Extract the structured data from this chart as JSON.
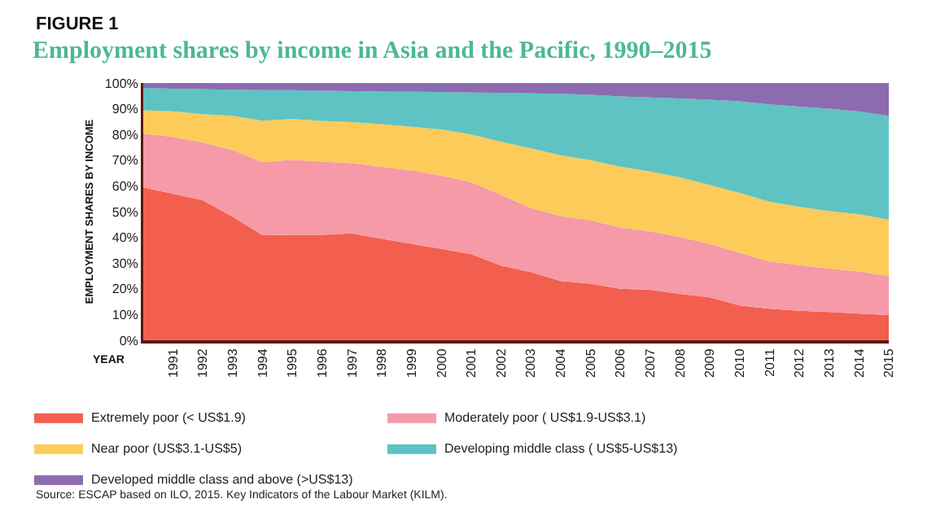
{
  "chart_data": {
    "type": "area",
    "stacked": true,
    "title": "Employment shares by income in Asia and the Pacific, 1990–2015",
    "ylabel": "EMPLOYMENT SHARES BY INCOME",
    "xlabel": "YEAR",
    "x": [
      1990,
      1991,
      1992,
      1993,
      1994,
      1995,
      1996,
      1997,
      1998,
      1999,
      2000,
      2001,
      2002,
      2003,
      2004,
      2005,
      2006,
      2007,
      2008,
      2009,
      2010,
      2011,
      2012,
      2013,
      2014,
      2015
    ],
    "series": [
      {
        "name": "Extremely poor (< US$1.9)",
        "color": "#f25f4f",
        "values": [
          59.4,
          57,
          54.4,
          48,
          40.8,
          41,
          41,
          41.5,
          39.5,
          37.5,
          35.5,
          33.5,
          29,
          26.5,
          23,
          22,
          20,
          19.6,
          18,
          16.7,
          13.5,
          12.3,
          11.5,
          11,
          10.4,
          9.8
        ]
      },
      {
        "name": "Moderately poor ( US$1.9-US$3.1)",
        "color": "#f59aa6",
        "values": [
          21,
          22,
          22.5,
          26,
          28.4,
          29.2,
          28.5,
          27.3,
          28,
          28.5,
          28.5,
          28,
          27.5,
          25,
          25.3,
          24.7,
          23.8,
          22.7,
          22.2,
          20.8,
          20.5,
          18.3,
          17.7,
          16.9,
          16.3,
          15.2
        ]
      },
      {
        "name": "Near poor (US$3.1-US$5)",
        "color": "#fccb5a",
        "values": [
          9,
          10,
          11,
          13.3,
          16.2,
          15.8,
          15.8,
          16,
          16.5,
          17,
          18,
          18.5,
          20.6,
          23.1,
          23.6,
          23.3,
          23.7,
          23.3,
          23.1,
          22.9,
          23.3,
          23.3,
          22.7,
          22.3,
          22.3,
          21.9
        ]
      },
      {
        "name": "Developing middle class ( US$5-US$13)",
        "color": "#5ec3c2",
        "values": [
          8.7,
          8.8,
          9.7,
          10.1,
          11.8,
          11.2,
          11.7,
          12,
          12.7,
          13.6,
          14.5,
          16.3,
          19.1,
          21.4,
          23.9,
          25.4,
          27.3,
          28.8,
          30.7,
          33.1,
          35.6,
          37.8,
          38.9,
          39.8,
          39.9,
          40.4
        ]
      },
      {
        "name": "Developed middle class and above (>US$13)",
        "color": "#8c6bb0",
        "values": [
          1.9,
          2.2,
          2.4,
          2.6,
          2.8,
          2.8,
          3,
          3.2,
          3.3,
          3.4,
          3.5,
          3.7,
          3.8,
          4,
          4.2,
          4.6,
          5.2,
          5.6,
          6,
          6.5,
          7.1,
          8.3,
          9.2,
          10,
          11.1,
          12.7
        ]
      }
    ],
    "xlim": [
      1990,
      2015
    ],
    "xticks": [
      1991,
      1992,
      1993,
      1994,
      1995,
      1996,
      1997,
      1998,
      1999,
      2000,
      2001,
      2002,
      2003,
      2004,
      2005,
      2006,
      2007,
      2008,
      2009,
      2010,
      2011,
      2012,
      2013,
      2014,
      2015
    ],
    "ylim": [
      0,
      100
    ],
    "yticks": [
      {
        "value": 0,
        "label": "0%"
      },
      {
        "value": 10,
        "label": "10%"
      },
      {
        "value": 20,
        "label": "20%"
      },
      {
        "value": 30,
        "label": "30%"
      },
      {
        "value": 40,
        "label": "40%"
      },
      {
        "value": 50,
        "label": "50%"
      },
      {
        "value": 60,
        "label": "60%"
      },
      {
        "value": 70,
        "label": "70%"
      },
      {
        "value": 80,
        "label": "80%"
      },
      {
        "value": 90,
        "label": "90%"
      },
      {
        "value": 100,
        "label": "100%"
      }
    ],
    "legend": "bottom",
    "annotations": [
      "FIGURE 1",
      "Source: ESCAP based on ILO, 2015. Key Indicators of the Labour Market (KILM)."
    ]
  }
}
